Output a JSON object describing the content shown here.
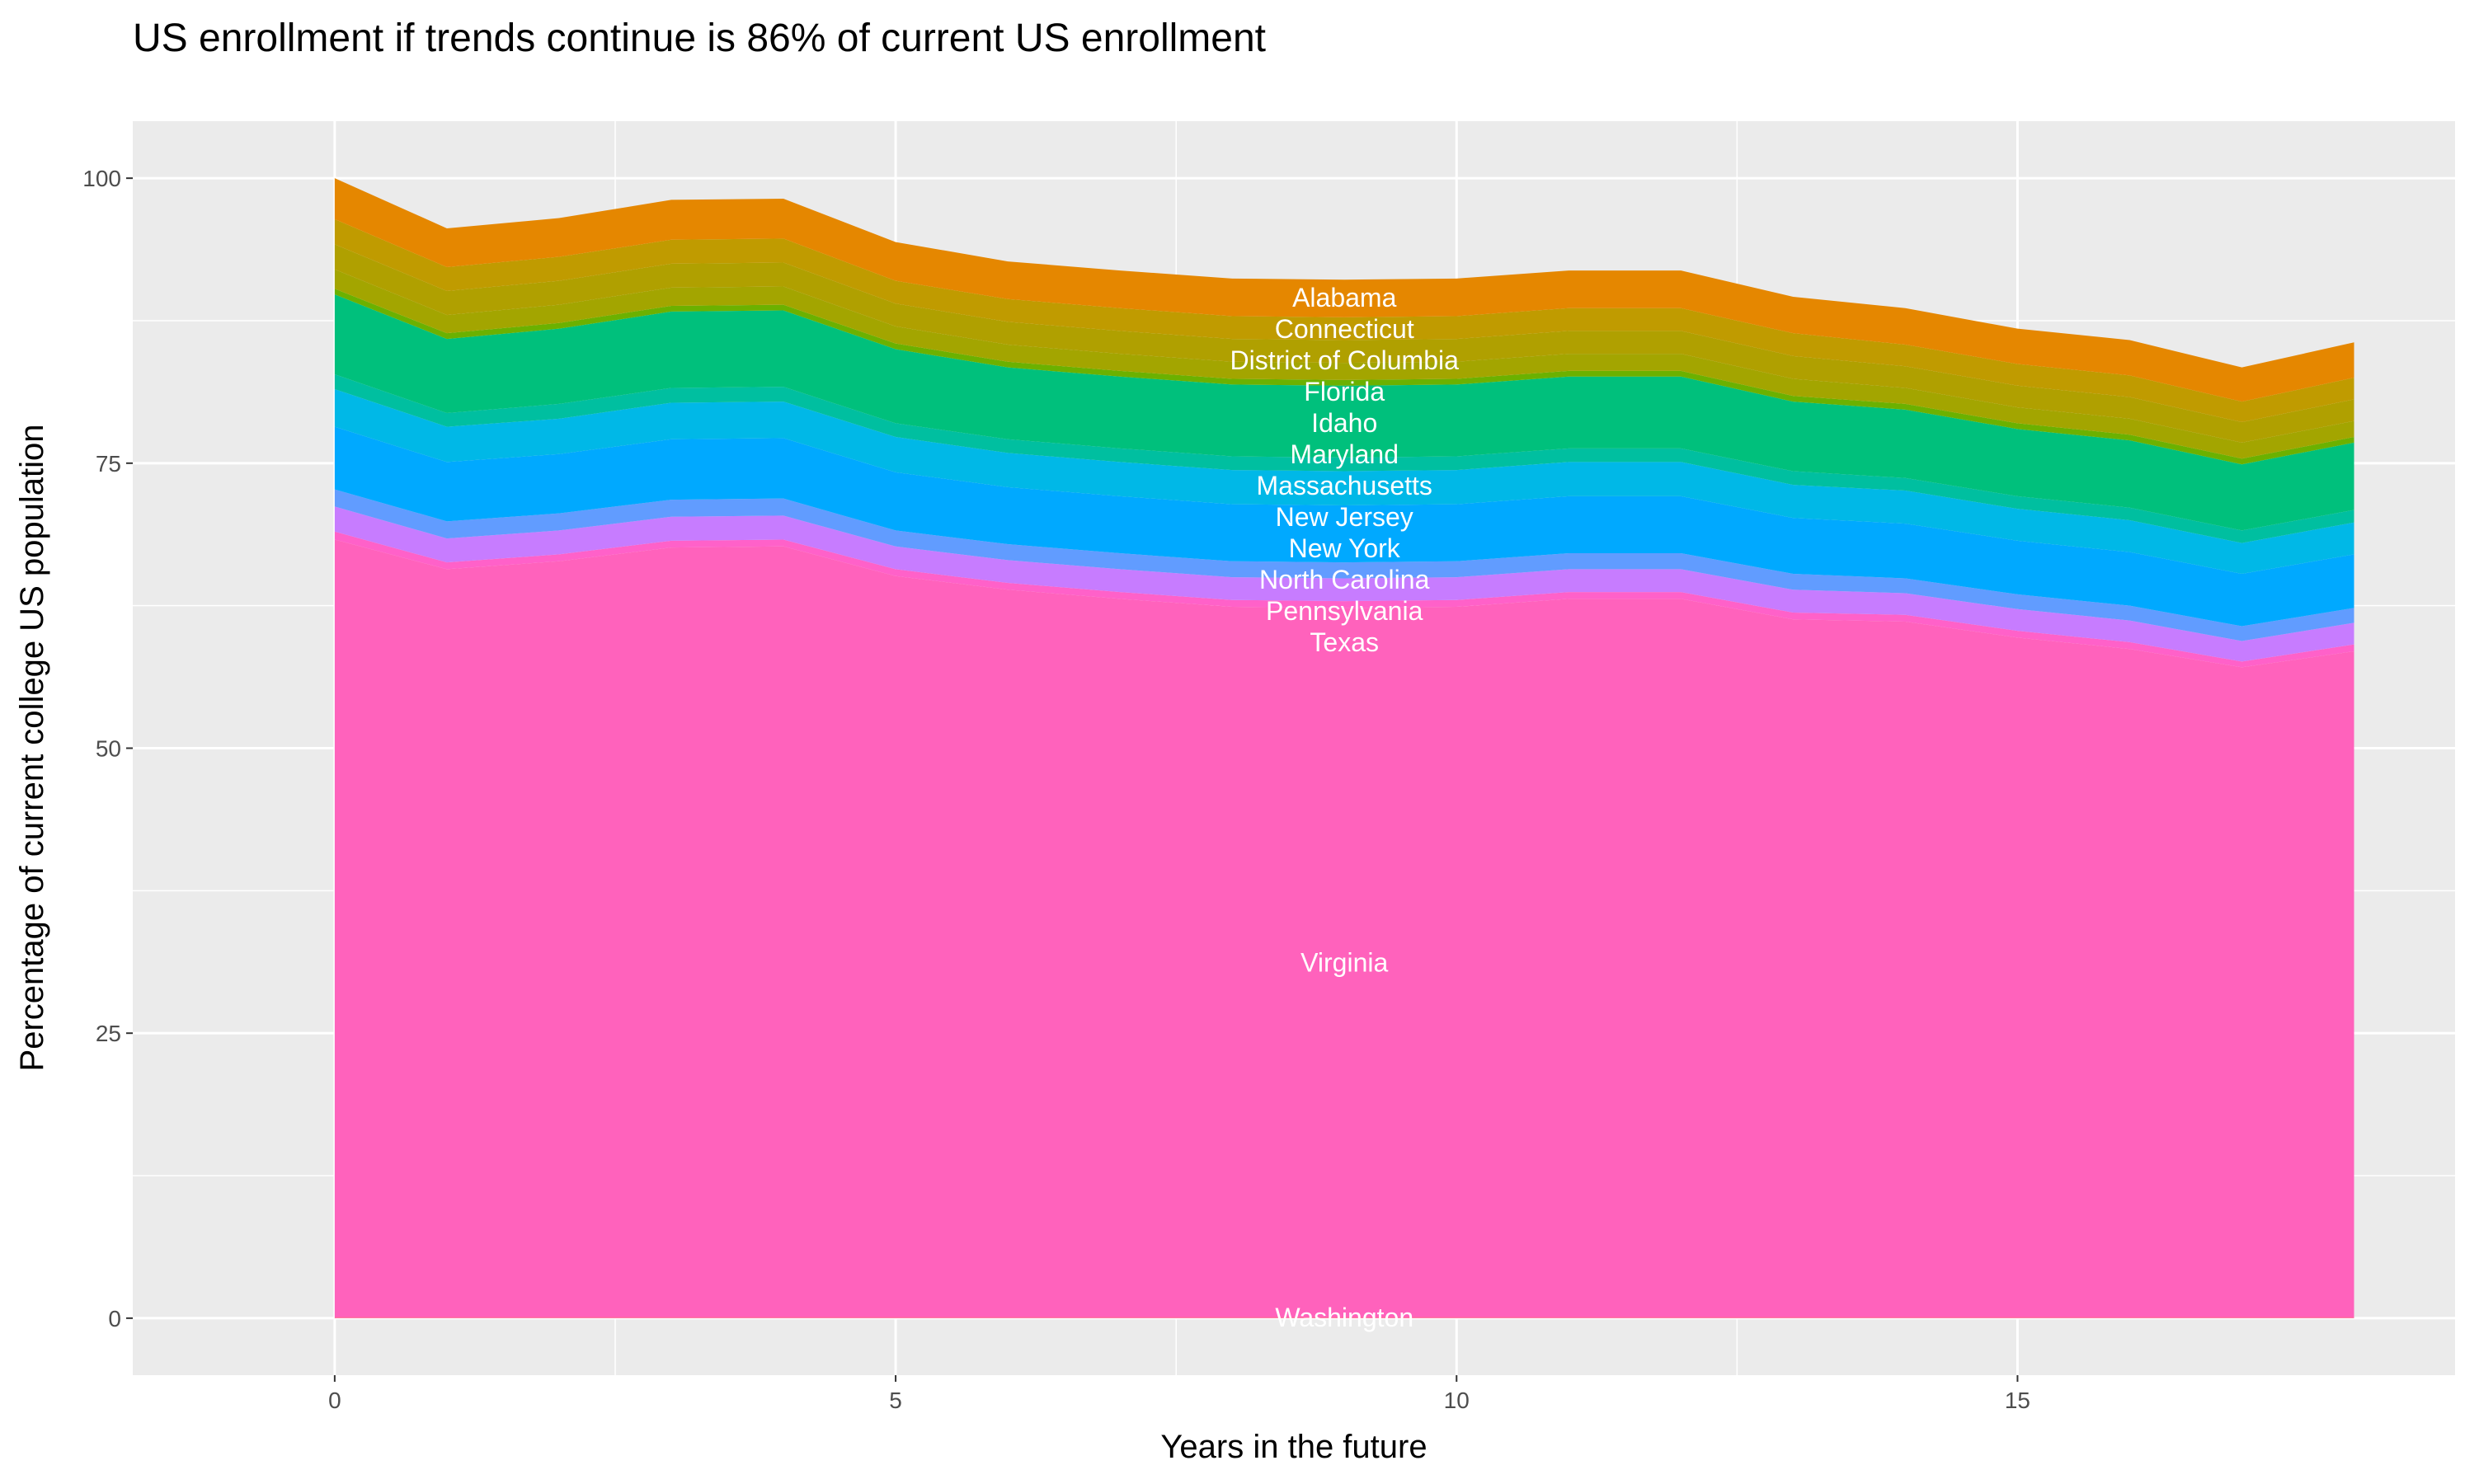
{
  "chart_data": {
    "type": "area",
    "stacked": true,
    "title": "US enrollment if trends continue is 86% of current US enrollment",
    "xlabel": "Years in the future",
    "ylabel": "Percentage of current college US population",
    "xlim": [
      -1.8,
      18.9
    ],
    "ylim": [
      -5,
      105
    ],
    "xticks": [
      0,
      5,
      10,
      15
    ],
    "yticks": [
      0,
      25,
      50,
      75,
      100
    ],
    "grid": true,
    "legend": "none",
    "label_x": 9,
    "x": [
      0,
      1,
      2,
      3,
      4,
      5,
      6,
      7,
      8,
      9,
      10,
      11,
      12,
      13,
      14,
      15,
      16,
      17,
      18
    ],
    "series": [
      {
        "name": "Washington",
        "color": "#FF6A98",
        "values": [
          0.1,
          0.1,
          0.1,
          0.1,
          0.1,
          0.1,
          0.1,
          0.1,
          0.1,
          0.1,
          0.1,
          0.1,
          0.1,
          0.1,
          0.1,
          0.1,
          0.1,
          0.1,
          0.1
        ]
      },
      {
        "name": "Virginia",
        "color": "#FF62BC",
        "values": [
          68.2,
          65.6,
          66.3,
          67.5,
          67.6,
          65.0,
          63.8,
          63.0,
          62.3,
          62.2,
          62.3,
          63.0,
          63.0,
          61.2,
          61.0,
          59.6,
          58.6,
          57.0,
          58.4
        ]
      },
      {
        "name": "Texas",
        "color": "#FF61C9",
        "values": [
          0.7,
          0.6,
          0.6,
          0.6,
          0.6,
          0.6,
          0.6,
          0.6,
          0.6,
          0.6,
          0.6,
          0.6,
          0.6,
          0.6,
          0.6,
          0.6,
          0.6,
          0.5,
          0.6
        ]
      },
      {
        "name": "Pennsylvania",
        "color": "#C77CFF",
        "values": [
          2.2,
          2.1,
          2.1,
          2.1,
          2.1,
          2.0,
          2.0,
          2.0,
          2.0,
          2.0,
          2.0,
          2.0,
          2.0,
          2.0,
          1.9,
          1.9,
          1.9,
          1.8,
          1.9
        ]
      },
      {
        "name": "North Carolina",
        "color": "#619CFF",
        "values": [
          1.5,
          1.5,
          1.5,
          1.5,
          1.5,
          1.4,
          1.4,
          1.4,
          1.4,
          1.4,
          1.4,
          1.4,
          1.4,
          1.4,
          1.3,
          1.3,
          1.3,
          1.3,
          1.3
        ]
      },
      {
        "name": "New York",
        "color": "#00A9FF",
        "values": [
          5.5,
          5.2,
          5.2,
          5.3,
          5.3,
          5.1,
          5.0,
          5.0,
          5.0,
          5.0,
          5.0,
          5.0,
          5.0,
          4.9,
          4.8,
          4.7,
          4.7,
          4.6,
          4.7
        ]
      },
      {
        "name": "New Jersey",
        "color": "#00B8E7",
        "values": [
          3.3,
          3.1,
          3.1,
          3.2,
          3.2,
          3.1,
          3.0,
          3.0,
          3.0,
          3.0,
          3.0,
          3.0,
          3.0,
          2.9,
          2.9,
          2.8,
          2.8,
          2.7,
          2.8
        ]
      },
      {
        "name": "Massachusetts",
        "color": "#00BFA0",
        "values": [
          1.3,
          1.2,
          1.3,
          1.3,
          1.3,
          1.2,
          1.2,
          1.2,
          1.2,
          1.2,
          1.2,
          1.2,
          1.2,
          1.2,
          1.1,
          1.1,
          1.1,
          1.1,
          1.1
        ]
      },
      {
        "name": "Maryland",
        "color": "#00C07C",
        "values": [
          7.0,
          6.5,
          6.6,
          6.7,
          6.7,
          6.5,
          6.3,
          6.3,
          6.3,
          6.3,
          6.3,
          6.3,
          6.3,
          6.1,
          6.0,
          5.9,
          5.9,
          5.8,
          5.9
        ]
      },
      {
        "name": "Idaho",
        "color": "#6BB100",
        "values": [
          0.5,
          0.5,
          0.5,
          0.5,
          0.5,
          0.5,
          0.5,
          0.5,
          0.5,
          0.5,
          0.5,
          0.5,
          0.5,
          0.5,
          0.5,
          0.5,
          0.5,
          0.5,
          0.5
        ]
      },
      {
        "name": "Florida",
        "color": "#A3A500",
        "values": [
          1.7,
          1.6,
          1.6,
          1.6,
          1.6,
          1.5,
          1.5,
          1.5,
          1.5,
          1.5,
          1.5,
          1.5,
          1.5,
          1.5,
          1.4,
          1.4,
          1.4,
          1.4,
          1.4
        ]
      },
      {
        "name": "District of Columbia",
        "color": "#B0A000",
        "values": [
          2.2,
          2.1,
          2.1,
          2.1,
          2.1,
          2.0,
          2.0,
          2.0,
          2.0,
          2.0,
          2.0,
          2.0,
          2.0,
          2.0,
          1.9,
          1.9,
          1.9,
          1.8,
          1.9
        ]
      },
      {
        "name": "Connecticut",
        "color": "#C09B00",
        "values": [
          2.2,
          2.1,
          2.1,
          2.1,
          2.1,
          2.0,
          2.0,
          2.0,
          2.0,
          2.0,
          2.0,
          2.0,
          2.0,
          2.0,
          1.9,
          1.9,
          1.9,
          1.8,
          1.9
        ]
      },
      {
        "name": "Alabama",
        "color": "#E58700",
        "values": [
          3.6,
          3.4,
          3.4,
          3.5,
          3.5,
          3.4,
          3.3,
          3.3,
          3.3,
          3.3,
          3.3,
          3.3,
          3.3,
          3.2,
          3.2,
          3.1,
          3.1,
          3.0,
          3.1
        ]
      }
    ]
  }
}
